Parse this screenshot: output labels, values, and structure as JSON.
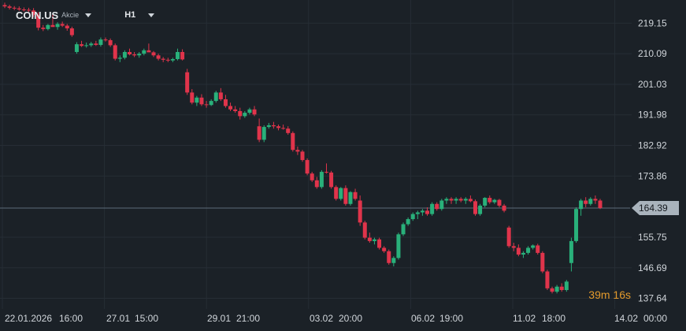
{
  "header": {
    "symbol": "COIN.US",
    "instrument_type": "Akcie",
    "timeframe": "H1"
  },
  "countdown": {
    "minutes": "39",
    "m_label": "m",
    "seconds": "16",
    "s_label": "s"
  },
  "colors": {
    "background": "#1b2127",
    "grid": "#262d35",
    "up": "#29b07a",
    "down": "#e0344b",
    "axis_text": "#d0d5da",
    "price_line": "#5c6b78",
    "price_tag": "#a9b3bc"
  },
  "chart_data": {
    "type": "candlestick",
    "ylim": [
      134.5,
      226
    ],
    "y_ticks": [
      "219.15",
      "210.09",
      "201.03",
      "191.98",
      "182.92",
      "173.86",
      "155.75",
      "146.69",
      "137.64"
    ],
    "current_price": "164.39",
    "x_ticks": [
      "22.01.2026",
      "16:00",
      "27.01",
      "15:00",
      "29.01",
      "21:00",
      "03.02",
      "20:00",
      "06.02",
      "19:00",
      "11.02",
      "18:00",
      "14.02",
      "00:00"
    ],
    "grid": true,
    "candles": [
      [
        224.5,
        225.2,
        223.6,
        224.1
      ],
      [
        224.1,
        224.6,
        223.2,
        223.7
      ],
      [
        223.7,
        224.2,
        223.0,
        223.5
      ],
      [
        223.5,
        224.1,
        222.8,
        223.2
      ],
      [
        223.2,
        223.8,
        222.6,
        223.1
      ],
      [
        223.1,
        223.7,
        222.5,
        222.9
      ],
      [
        222.9,
        223.6,
        221.0,
        221.6
      ],
      [
        221.6,
        222.4,
        217.0,
        217.8
      ],
      [
        217.8,
        218.6,
        216.8,
        217.4
      ],
      [
        217.4,
        218.9,
        217.0,
        218.6
      ],
      [
        218.6,
        222.1,
        218.1,
        218.0
      ],
      [
        218.0,
        219.4,
        217.2,
        218.9
      ],
      [
        218.9,
        219.6,
        218.0,
        218.4
      ],
      [
        218.4,
        218.9,
        216.9,
        217.6
      ],
      [
        217.6,
        218.1,
        215.1,
        215.6
      ],
      [
        210.6,
        213.5,
        210.1,
        212.9
      ],
      [
        212.9,
        213.9,
        212.1,
        212.4
      ],
      [
        212.4,
        213.4,
        211.9,
        212.6
      ],
      [
        212.6,
        213.6,
        212.1,
        213.1
      ],
      [
        213.1,
        213.9,
        212.4,
        212.7
      ],
      [
        212.7,
        214.9,
        212.2,
        214.3
      ],
      [
        214.3,
        214.9,
        213.7,
        214.1
      ],
      [
        214.1,
        214.6,
        212.1,
        212.6
      ],
      [
        212.6,
        213.1,
        208.1,
        208.6
      ],
      [
        208.6,
        209.6,
        207.6,
        208.9
      ],
      [
        208.9,
        211.1,
        208.4,
        210.6
      ],
      [
        210.6,
        211.6,
        209.6,
        209.9
      ],
      [
        209.9,
        210.6,
        209.1,
        209.6
      ],
      [
        209.6,
        210.6,
        208.9,
        210.1
      ],
      [
        210.1,
        211.6,
        209.6,
        211.1
      ],
      [
        211.1,
        213.1,
        210.6,
        210.5
      ],
      [
        210.5,
        210.9,
        209.1,
        209.6
      ],
      [
        209.6,
        210.1,
        208.1,
        208.6
      ],
      [
        208.6,
        209.1,
        207.6,
        208.3
      ],
      [
        208.3,
        208.9,
        207.6,
        208.1
      ],
      [
        208.1,
        208.9,
        207.6,
        208.5
      ],
      [
        208.5,
        211.6,
        208.1,
        210.6
      ],
      [
        210.6,
        211.4,
        208.1,
        208.4
      ],
      [
        204.6,
        205.6,
        197.9,
        198.6
      ],
      [
        198.6,
        199.6,
        195.1,
        195.6
      ],
      [
        195.6,
        197.6,
        194.6,
        197.1
      ],
      [
        197.1,
        198.1,
        194.6,
        195.1
      ],
      [
        195.1,
        196.1,
        194.1,
        194.9
      ],
      [
        194.9,
        196.6,
        194.6,
        196.1
      ],
      [
        196.1,
        199.1,
        195.6,
        198.6
      ],
      [
        198.6,
        199.9,
        196.1,
        196.6
      ],
      [
        196.6,
        197.9,
        194.1,
        194.6
      ],
      [
        194.6,
        195.6,
        193.1,
        193.6
      ],
      [
        193.6,
        194.6,
        192.6,
        193.1
      ],
      [
        193.1,
        194.1,
        190.6,
        191.6
      ],
      [
        191.6,
        193.1,
        191.1,
        192.6
      ],
      [
        192.6,
        194.1,
        192.1,
        193.6
      ],
      [
        193.6,
        194.6,
        191.6,
        192.1
      ],
      [
        188.6,
        190.9,
        183.9,
        184.6
      ],
      [
        184.6,
        188.9,
        183.9,
        188.4
      ],
      [
        188.4,
        189.6,
        187.9,
        188.9
      ],
      [
        188.9,
        189.9,
        187.9,
        188.6
      ],
      [
        188.6,
        189.1,
        187.4,
        188.1
      ],
      [
        188.1,
        189.1,
        187.6,
        187.9
      ],
      [
        187.9,
        188.6,
        186.1,
        186.6
      ],
      [
        186.6,
        187.1,
        181.1,
        181.6
      ],
      [
        181.6,
        182.6,
        180.1,
        181.1
      ],
      [
        181.1,
        181.6,
        178.1,
        178.6
      ],
      [
        178.6,
        179.1,
        174.1,
        174.6
      ],
      [
        174.6,
        175.1,
        172.1,
        172.6
      ],
      [
        172.6,
        173.6,
        170.1,
        170.6
      ],
      [
        170.6,
        175.6,
        170.1,
        175.1
      ],
      [
        175.1,
        177.6,
        174.6,
        174.9
      ],
      [
        174.9,
        175.4,
        170.1,
        170.6
      ],
      [
        170.6,
        171.1,
        166.6,
        167.1
      ],
      [
        167.1,
        170.6,
        166.6,
        170.3
      ],
      [
        170.3,
        171.1,
        165.1,
        165.6
      ],
      [
        165.6,
        169.4,
        165.1,
        169.1
      ],
      [
        169.1,
        170.1,
        166.6,
        167.1
      ],
      [
        166.6,
        168.1,
        159.1,
        160.1
      ],
      [
        160.1,
        160.6,
        155.1,
        155.6
      ],
      [
        155.6,
        157.1,
        154.1,
        154.6
      ],
      [
        154.6,
        155.6,
        153.6,
        155.1
      ],
      [
        155.1,
        155.6,
        152.1,
        152.6
      ],
      [
        152.6,
        153.1,
        151.1,
        151.6
      ],
      [
        151.6,
        152.1,
        147.6,
        148.1
      ],
      [
        148.1,
        150.1,
        147.1,
        149.6
      ],
      [
        149.6,
        157.1,
        149.1,
        156.6
      ],
      [
        156.6,
        160.1,
        156.1,
        159.6
      ],
      [
        159.6,
        161.6,
        159.1,
        161.1
      ],
      [
        161.1,
        163.1,
        160.6,
        162.6
      ],
      [
        162.6,
        163.6,
        161.1,
        163.1
      ],
      [
        163.1,
        164.1,
        162.1,
        163.6
      ],
      [
        163.6,
        164.6,
        162.1,
        162.6
      ],
      [
        162.6,
        166.1,
        162.1,
        165.6
      ],
      [
        165.6,
        166.1,
        163.6,
        164.1
      ],
      [
        164.1,
        167.1,
        163.6,
        166.6
      ],
      [
        166.6,
        167.6,
        165.6,
        167.1
      ],
      [
        167.1,
        167.6,
        165.6,
        166.6
      ],
      [
        166.6,
        167.6,
        165.6,
        167.1
      ],
      [
        167.1,
        167.6,
        166.1,
        166.6
      ],
      [
        166.6,
        167.6,
        165.6,
        167.1
      ],
      [
        167.1,
        168.1,
        166.1,
        166.4
      ],
      [
        166.4,
        166.9,
        162.1,
        162.6
      ],
      [
        162.6,
        165.6,
        162.1,
        165.1
      ],
      [
        165.1,
        167.6,
        164.6,
        167.4
      ],
      [
        167.4,
        168.1,
        165.6,
        166.1
      ],
      [
        166.1,
        167.1,
        165.6,
        166.8
      ],
      [
        166.8,
        167.1,
        164.6,
        165.1
      ],
      [
        165.1,
        165.6,
        163.1,
        163.6
      ],
      [
        158.6,
        159.1,
        152.6,
        153.1
      ],
      [
        153.1,
        154.1,
        151.6,
        152.6
      ],
      [
        152.6,
        153.6,
        150.1,
        150.6
      ],
      [
        150.6,
        151.6,
        149.6,
        151.1
      ],
      [
        151.1,
        153.1,
        150.6,
        152.6
      ],
      [
        152.6,
        153.6,
        152.1,
        153.3
      ],
      [
        153.3,
        153.8,
        150.6,
        151.1
      ],
      [
        151.1,
        151.6,
        145.1,
        145.6
      ],
      [
        145.6,
        146.1,
        140.1,
        140.6
      ],
      [
        140.6,
        141.1,
        139.1,
        139.6
      ],
      [
        139.6,
        141.6,
        139.1,
        141.1
      ],
      [
        141.1,
        142.1,
        139.6,
        140.1
      ],
      [
        140.1,
        143.1,
        139.6,
        142.6
      ],
      [
        148.1,
        155.6,
        145.6,
        154.6
      ],
      [
        154.6,
        164.6,
        154.1,
        164.1
      ],
      [
        164.1,
        167.1,
        162.1,
        166.6
      ],
      [
        166.6,
        167.6,
        164.6,
        165.6
      ],
      [
        165.6,
        167.6,
        165.1,
        167.1
      ],
      [
        167.1,
        168.1,
        165.6,
        166.6
      ],
      [
        166.6,
        167.1,
        164.1,
        164.4
      ]
    ]
  }
}
